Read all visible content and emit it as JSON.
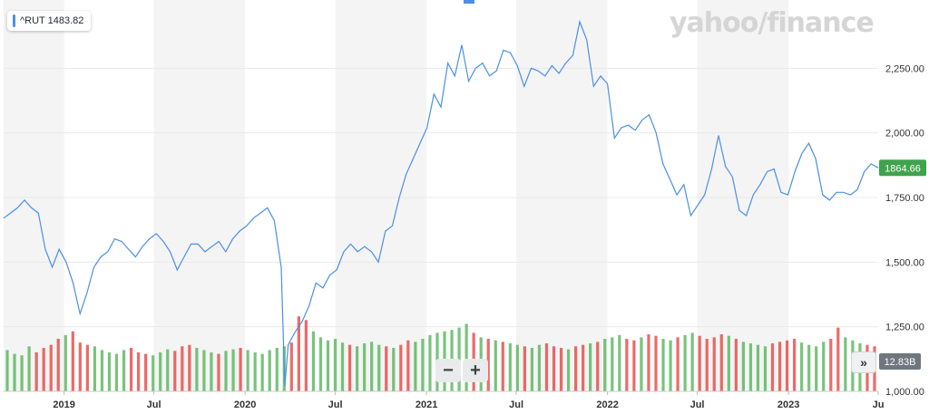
{
  "legend": {
    "label": "^RUT 1483.82"
  },
  "brand": {
    "text": "yahoo/finance"
  },
  "controls": {
    "zoom_out": "−",
    "zoom_in": "+",
    "scroll_right": "»"
  },
  "colors": {
    "line": "#4a8fe7",
    "up_volume": "#4caf50",
    "down_volume": "#e53935",
    "price_badge": "#3fa34d",
    "volume_badge": "#6e7780",
    "year_band": "#f4f4f4",
    "grid": "#e9e9e9"
  },
  "chart_data": {
    "type": "line",
    "title": "",
    "xlabel": "",
    "ylabel": "",
    "x_range": [
      "2018-09-01",
      "2023-07-01"
    ],
    "ylim": [
      1000,
      2500
    ],
    "grid": true,
    "y_ticks": [
      "2,250.00",
      "2,000.00",
      "1,750.00",
      "1,500.00",
      "1,250.00",
      "1,000.00"
    ],
    "y_tick_values": [
      2250,
      2000,
      1750,
      1500,
      1250,
      1000
    ],
    "x_ticks": [
      {
        "label": "2019",
        "date": "2019-01-01"
      },
      {
        "label": "Jul",
        "date": "2019-07-01"
      },
      {
        "label": "2020",
        "date": "2020-01-01"
      },
      {
        "label": "Jul",
        "date": "2020-07-01"
      },
      {
        "label": "2021",
        "date": "2021-01-01"
      },
      {
        "label": "Jul",
        "date": "2021-07-01"
      },
      {
        "label": "2022",
        "date": "2022-01-01"
      },
      {
        "label": "Jul",
        "date": "2022-07-01"
      },
      {
        "label": "2023",
        "date": "2023-01-01"
      },
      {
        "label": "Ju",
        "date": "2023-07-01"
      }
    ],
    "shaded_periods": [
      [
        "2018-09-01",
        "2019-01-01"
      ],
      [
        "2019-07-01",
        "2020-01-01"
      ],
      [
        "2020-07-01",
        "2021-01-01"
      ],
      [
        "2021-07-01",
        "2022-01-01"
      ],
      [
        "2022-07-01",
        "2023-01-01"
      ]
    ],
    "current_price": {
      "label": "1864.66",
      "value": 1864.66
    },
    "volume_max_label": "12.83B",
    "series": [
      {
        "points": [
          [
            "2018-09-01",
            1670
          ],
          [
            "2018-09-15",
            1690
          ],
          [
            "2018-09-29",
            1710
          ],
          [
            "2018-10-13",
            1740
          ],
          [
            "2018-10-27",
            1710
          ],
          [
            "2018-11-10",
            1690
          ],
          [
            "2018-11-24",
            1550
          ],
          [
            "2018-12-08",
            1480
          ],
          [
            "2018-12-22",
            1550
          ],
          [
            "2019-01-05",
            1500
          ],
          [
            "2019-01-19",
            1420
          ],
          [
            "2019-02-02",
            1300
          ],
          [
            "2019-02-16",
            1380
          ],
          [
            "2019-03-02",
            1480
          ],
          [
            "2019-03-16",
            1520
          ],
          [
            "2019-03-30",
            1540
          ],
          [
            "2019-04-13",
            1590
          ],
          [
            "2019-04-27",
            1580
          ],
          [
            "2019-05-11",
            1550
          ],
          [
            "2019-05-25",
            1520
          ],
          [
            "2019-06-08",
            1560
          ],
          [
            "2019-06-22",
            1590
          ],
          [
            "2019-07-06",
            1610
          ],
          [
            "2019-07-20",
            1580
          ],
          [
            "2019-08-03",
            1540
          ],
          [
            "2019-08-17",
            1470
          ],
          [
            "2019-08-31",
            1520
          ],
          [
            "2019-09-14",
            1570
          ],
          [
            "2019-09-28",
            1570
          ],
          [
            "2019-10-12",
            1540
          ],
          [
            "2019-10-26",
            1560
          ],
          [
            "2019-11-09",
            1580
          ],
          [
            "2019-11-23",
            1540
          ],
          [
            "2019-12-07",
            1590
          ],
          [
            "2019-12-21",
            1620
          ],
          [
            "2020-01-04",
            1640
          ],
          [
            "2020-01-18",
            1670
          ],
          [
            "2020-02-01",
            1690
          ],
          [
            "2020-02-15",
            1710
          ],
          [
            "2020-02-29",
            1660
          ],
          [
            "2020-03-14",
            1480
          ],
          [
            "2020-03-21",
            1020
          ],
          [
            "2020-03-28",
            1180
          ],
          [
            "2020-04-11",
            1230
          ],
          [
            "2020-04-25",
            1270
          ],
          [
            "2020-05-09",
            1330
          ],
          [
            "2020-05-23",
            1420
          ],
          [
            "2020-06-06",
            1400
          ],
          [
            "2020-06-20",
            1450
          ],
          [
            "2020-07-04",
            1470
          ],
          [
            "2020-07-18",
            1540
          ],
          [
            "2020-08-01",
            1570
          ],
          [
            "2020-08-15",
            1540
          ],
          [
            "2020-08-29",
            1560
          ],
          [
            "2020-09-12",
            1540
          ],
          [
            "2020-09-26",
            1500
          ],
          [
            "2020-10-10",
            1620
          ],
          [
            "2020-10-24",
            1640
          ],
          [
            "2020-11-07",
            1750
          ],
          [
            "2020-11-21",
            1840
          ],
          [
            "2020-12-05",
            1900
          ],
          [
            "2020-12-19",
            1960
          ],
          [
            "2021-01-02",
            2020
          ],
          [
            "2021-01-16",
            2150
          ],
          [
            "2021-01-30",
            2100
          ],
          [
            "2021-02-13",
            2270
          ],
          [
            "2021-02-27",
            2220
          ],
          [
            "2021-03-13",
            2340
          ],
          [
            "2021-03-27",
            2200
          ],
          [
            "2021-04-10",
            2250
          ],
          [
            "2021-04-24",
            2270
          ],
          [
            "2021-05-08",
            2220
          ],
          [
            "2021-05-22",
            2240
          ],
          [
            "2021-06-05",
            2320
          ],
          [
            "2021-06-19",
            2310
          ],
          [
            "2021-07-03",
            2260
          ],
          [
            "2021-07-17",
            2180
          ],
          [
            "2021-07-31",
            2250
          ],
          [
            "2021-08-14",
            2240
          ],
          [
            "2021-08-28",
            2220
          ],
          [
            "2021-09-11",
            2260
          ],
          [
            "2021-09-25",
            2230
          ],
          [
            "2021-10-09",
            2270
          ],
          [
            "2021-10-23",
            2300
          ],
          [
            "2021-11-06",
            2430
          ],
          [
            "2021-11-20",
            2360
          ],
          [
            "2021-12-04",
            2180
          ],
          [
            "2021-12-18",
            2220
          ],
          [
            "2022-01-01",
            2190
          ],
          [
            "2022-01-15",
            1980
          ],
          [
            "2022-01-29",
            2020
          ],
          [
            "2022-02-12",
            2030
          ],
          [
            "2022-02-26",
            2010
          ],
          [
            "2022-03-12",
            2050
          ],
          [
            "2022-03-26",
            2070
          ],
          [
            "2022-04-09",
            2000
          ],
          [
            "2022-04-23",
            1880
          ],
          [
            "2022-05-07",
            1820
          ],
          [
            "2022-05-21",
            1760
          ],
          [
            "2022-06-04",
            1800
          ],
          [
            "2022-06-18",
            1680
          ],
          [
            "2022-07-02",
            1720
          ],
          [
            "2022-07-16",
            1760
          ],
          [
            "2022-07-30",
            1860
          ],
          [
            "2022-08-13",
            1990
          ],
          [
            "2022-08-27",
            1870
          ],
          [
            "2022-09-10",
            1830
          ],
          [
            "2022-09-24",
            1700
          ],
          [
            "2022-10-08",
            1680
          ],
          [
            "2022-10-22",
            1760
          ],
          [
            "2022-11-05",
            1800
          ],
          [
            "2022-11-19",
            1850
          ],
          [
            "2022-12-03",
            1860
          ],
          [
            "2022-12-17",
            1770
          ],
          [
            "2022-12-31",
            1760
          ],
          [
            "2023-01-14",
            1850
          ],
          [
            "2023-01-28",
            1920
          ],
          [
            "2023-02-11",
            1960
          ],
          [
            "2023-02-25",
            1900
          ],
          [
            "2023-03-11",
            1760
          ],
          [
            "2023-03-25",
            1740
          ],
          [
            "2023-04-08",
            1770
          ],
          [
            "2023-04-22",
            1770
          ],
          [
            "2023-05-06",
            1760
          ],
          [
            "2023-05-20",
            1780
          ],
          [
            "2023-06-03",
            1850
          ],
          [
            "2023-06-17",
            1880
          ],
          [
            "2023-07-01",
            1864.66
          ]
        ]
      }
    ],
    "volume_note": "volume bars in the bottom band, green for up periods and red for down periods",
    "volume_bars": [
      0.55,
      0.5,
      0.48,
      0.6,
      0.52,
      0.58,
      0.62,
      0.7,
      0.75,
      0.8,
      0.65,
      0.62,
      0.6,
      0.55,
      0.52,
      0.5,
      0.55,
      0.58,
      0.52,
      0.5,
      0.48,
      0.52,
      0.56,
      0.54,
      0.6,
      0.62,
      0.58,
      0.55,
      0.52,
      0.5,
      0.54,
      0.56,
      0.58,
      0.55,
      0.52,
      0.5,
      0.55,
      0.58,
      0.6,
      0.65,
      1.0,
      0.95,
      0.8,
      0.72,
      0.68,
      0.7,
      0.65,
      0.62,
      0.6,
      0.64,
      0.66,
      0.62,
      0.6,
      0.58,
      0.62,
      0.68,
      0.66,
      0.7,
      0.75,
      0.78,
      0.8,
      0.82,
      0.85,
      0.9,
      0.78,
      0.72,
      0.7,
      0.68,
      0.66,
      0.64,
      0.62,
      0.6,
      0.58,
      0.62,
      0.64,
      0.6,
      0.58,
      0.56,
      0.6,
      0.62,
      0.64,
      0.66,
      0.7,
      0.72,
      0.75,
      0.7,
      0.68,
      0.72,
      0.76,
      0.74,
      0.7,
      0.68,
      0.72,
      0.75,
      0.78,
      0.74,
      0.7,
      0.72,
      0.76,
      0.74,
      0.7,
      0.66,
      0.64,
      0.62,
      0.6,
      0.64,
      0.66,
      0.68,
      0.7,
      0.65,
      0.62,
      0.6,
      0.66,
      0.7,
      0.85,
      0.72,
      0.68,
      0.64,
      0.62,
      0.6
    ]
  }
}
